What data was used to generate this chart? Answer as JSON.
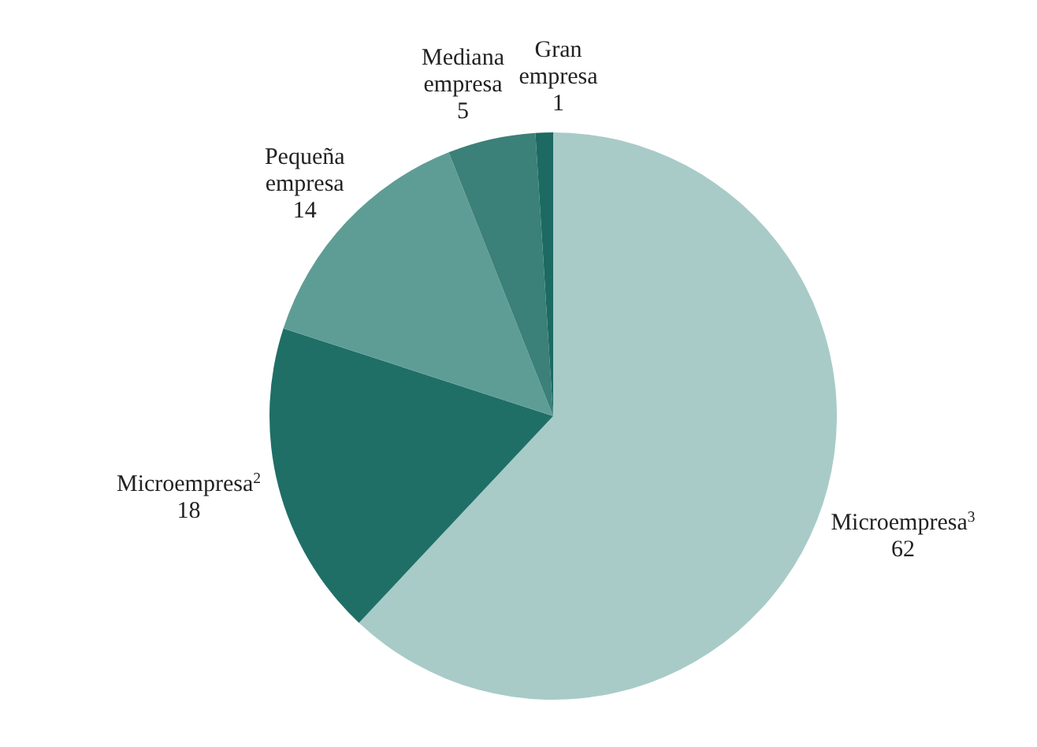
{
  "chart_data": {
    "type": "pie",
    "categories": [
      "Microempresa$^{3}$",
      "Microempresa$^{2}$",
      "Pequeña empresa",
      "Mediana empresa",
      "Gran empresa"
    ],
    "values": [
      62,
      18,
      14,
      5,
      1
    ],
    "colors": [
      "#a8cbc8",
      "#1f6f67",
      "#5e9d95",
      "#3b8079",
      "#1c6a62"
    ],
    "data_labels": true
  }
}
